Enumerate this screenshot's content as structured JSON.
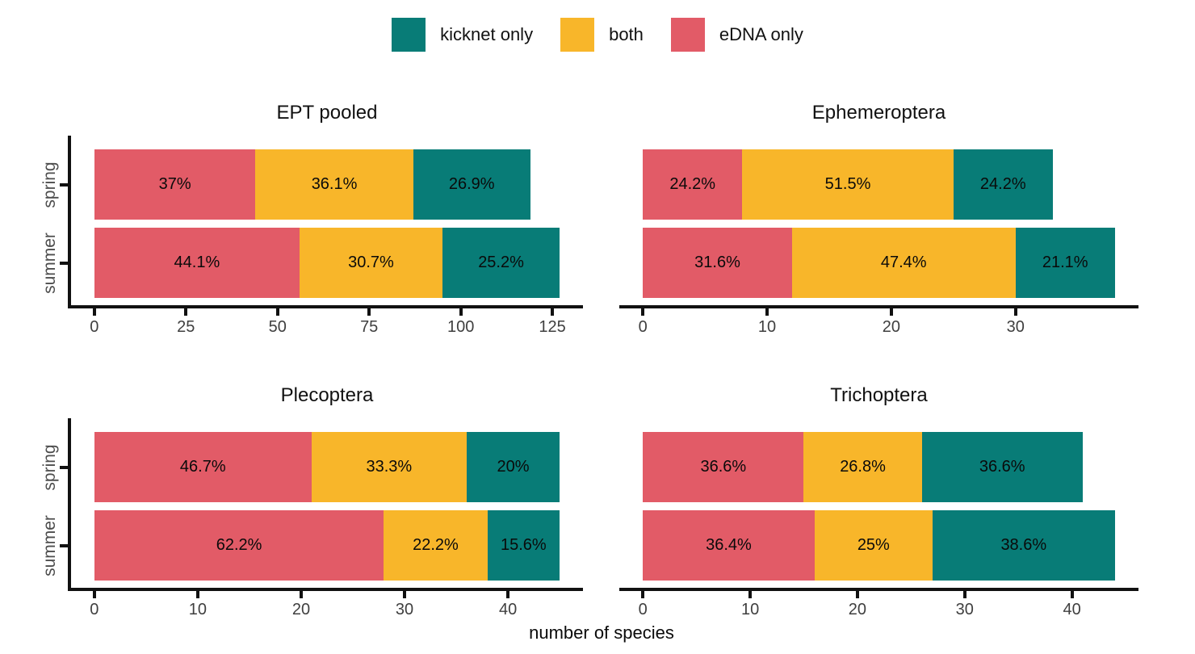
{
  "chart_data": {
    "type": "bar",
    "orientation": "horizontal",
    "stacked": true,
    "xlabel": "number of species",
    "categories": [
      "spring",
      "summer"
    ],
    "legend_position": "top",
    "legend": [
      {
        "label": "kicknet only",
        "color": "#087C77"
      },
      {
        "label": "both",
        "color": "#F8B62A"
      },
      {
        "label": "eDNA only",
        "color": "#E25B67"
      }
    ],
    "panels": [
      {
        "title": "EPT pooled",
        "x_ticks": [
          0,
          25,
          50,
          75,
          100,
          125
        ],
        "x_max": 127,
        "rows": [
          {
            "category": "spring",
            "total": 119,
            "segments": [
              {
                "series": "eDNA only",
                "value": 44,
                "label": "37%"
              },
              {
                "series": "both",
                "value": 43,
                "label": "36.1%"
              },
              {
                "series": "kicknet only",
                "value": 32,
                "label": "26.9%"
              }
            ]
          },
          {
            "category": "summer",
            "total": 127,
            "segments": [
              {
                "series": "eDNA only",
                "value": 56,
                "label": "44.1%"
              },
              {
                "series": "both",
                "value": 39,
                "label": "30.7%"
              },
              {
                "series": "kicknet only",
                "value": 32,
                "label": "25.2%"
              }
            ]
          }
        ]
      },
      {
        "title": "Ephemeroptera",
        "x_ticks": [
          0,
          10,
          20,
          30
        ],
        "x_max": 38,
        "rows": [
          {
            "category": "spring",
            "total": 33,
            "segments": [
              {
                "series": "eDNA only",
                "value": 8,
                "label": "24.2%"
              },
              {
                "series": "both",
                "value": 17,
                "label": "51.5%"
              },
              {
                "series": "kicknet only",
                "value": 8,
                "label": "24.2%"
              }
            ]
          },
          {
            "category": "summer",
            "total": 38,
            "segments": [
              {
                "series": "eDNA only",
                "value": 12,
                "label": "31.6%"
              },
              {
                "series": "both",
                "value": 18,
                "label": "47.4%"
              },
              {
                "series": "kicknet only",
                "value": 8,
                "label": "21.1%"
              }
            ]
          }
        ]
      },
      {
        "title": "Plecoptera",
        "x_ticks": [
          0,
          10,
          20,
          30,
          40
        ],
        "x_max": 45,
        "rows": [
          {
            "category": "spring",
            "total": 45,
            "segments": [
              {
                "series": "eDNA only",
                "value": 21,
                "label": "46.7%"
              },
              {
                "series": "both",
                "value": 15,
                "label": "33.3%"
              },
              {
                "series": "kicknet only",
                "value": 9,
                "label": "20%"
              }
            ]
          },
          {
            "category": "summer",
            "total": 45,
            "segments": [
              {
                "series": "eDNA only",
                "value": 28,
                "label": "62.2%"
              },
              {
                "series": "both",
                "value": 10,
                "label": "22.2%"
              },
              {
                "series": "kicknet only",
                "value": 7,
                "label": "15.6%"
              }
            ]
          }
        ]
      },
      {
        "title": "Trichoptera",
        "x_ticks": [
          0,
          10,
          20,
          30,
          40
        ],
        "x_max": 44,
        "rows": [
          {
            "category": "spring",
            "total": 41,
            "segments": [
              {
                "series": "eDNA only",
                "value": 15,
                "label": "36.6%"
              },
              {
                "series": "both",
                "value": 11,
                "label": "26.8%"
              },
              {
                "series": "kicknet only",
                "value": 15,
                "label": "36.6%"
              }
            ]
          },
          {
            "category": "summer",
            "total": 44,
            "segments": [
              {
                "series": "eDNA only",
                "value": 16,
                "label": "36.4%"
              },
              {
                "series": "both",
                "value": 11,
                "label": "25%"
              },
              {
                "series": "kicknet only",
                "value": 17,
                "label": "38.6%"
              }
            ]
          }
        ]
      }
    ]
  }
}
